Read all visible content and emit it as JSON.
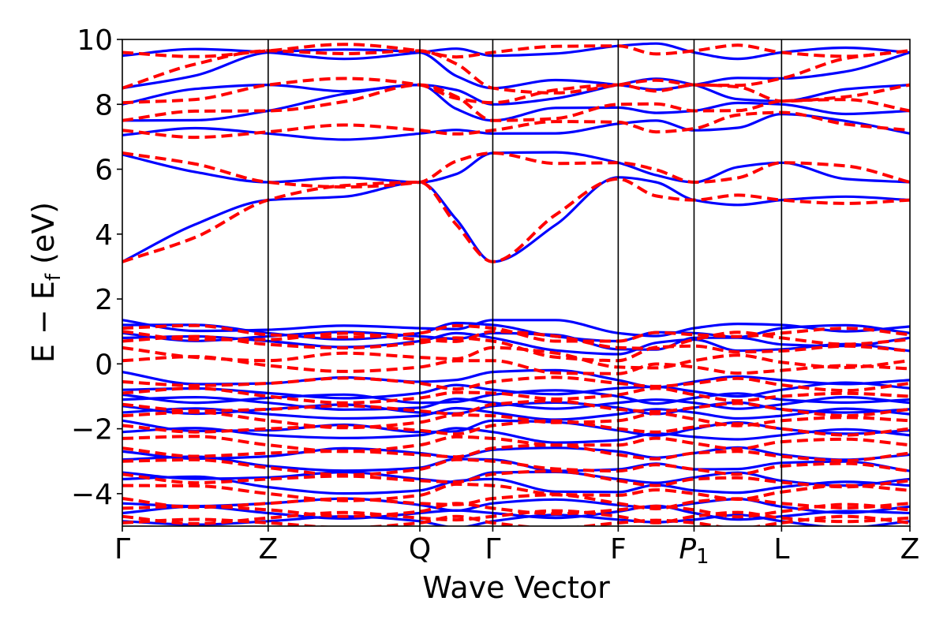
{
  "chart_data": {
    "type": "line",
    "xlabel": "Wave Vector",
    "ylabel_main": "E − E",
    "ylabel_sub": "f",
    "ylabel_unit": " (eV)",
    "ylim": [
      -5,
      10
    ],
    "yticks": [
      -4,
      -2,
      0,
      2,
      4,
      6,
      8,
      10
    ],
    "kpoints": [
      {
        "label": "Γ",
        "italic": false,
        "sub": ""
      },
      {
        "label": "Z",
        "italic": false,
        "sub": ""
      },
      {
        "label": "Q",
        "italic": false,
        "sub": ""
      },
      {
        "label": "Γ",
        "italic": false,
        "sub": ""
      },
      {
        "label": "F",
        "italic": false,
        "sub": ""
      },
      {
        "label": "P",
        "italic": true,
        "sub": "1"
      },
      {
        "label": "L",
        "italic": false,
        "sub": ""
      },
      {
        "label": "Z",
        "italic": false,
        "sub": ""
      }
    ],
    "kpos": [
      0,
      1,
      2.04,
      2.54,
      3.4,
      3.92,
      4.52,
      5.4
    ],
    "grid": "vertical lines at high-symmetry points",
    "series": [
      {
        "color": "#0000ff",
        "style": "solid",
        "bands": [
          [
            3.15,
            5.05,
            5.6,
            3.15,
            5.75,
            5.05,
            5.05,
            5.05
          ],
          [
            6.45,
            5.6,
            5.6,
            6.5,
            6.2,
            5.6,
            6.2,
            5.6
          ],
          [
            7.05,
            7.1,
            7.1,
            7.1,
            7.4,
            7.2,
            7.7,
            7.1
          ],
          [
            7.5,
            7.8,
            8.6,
            7.5,
            7.9,
            7.8,
            8.0,
            7.8
          ],
          [
            8.0,
            8.6,
            8.6,
            8.0,
            8.6,
            8.6,
            8.1,
            8.6
          ],
          [
            8.5,
            9.6,
            9.6,
            8.5,
            8.6,
            8.6,
            8.8,
            9.6
          ],
          [
            9.5,
            9.6,
            9.6,
            9.5,
            9.8,
            9.6,
            9.6,
            9.6
          ],
          [
            1.35,
            1.05,
            1.1,
            1.35,
            0.95,
            1.1,
            1.2,
            1.15
          ],
          [
            1.2,
            0.95,
            0.95,
            1.2,
            0.7,
            0.95,
            1.1,
            0.95
          ],
          [
            0.95,
            0.85,
            0.85,
            0.95,
            0.45,
            0.8,
            0.6,
            0.8
          ],
          [
            0.8,
            0.7,
            0.7,
            0.8,
            0.3,
            0.75,
            0.45,
            0.4
          ],
          [
            -0.25,
            -0.6,
            -0.55,
            -0.25,
            -0.5,
            -0.55,
            -0.5,
            -0.5
          ],
          [
            -0.8,
            -0.9,
            -0.9,
            -0.8,
            -0.75,
            -0.85,
            -0.8,
            -0.75
          ],
          [
            -0.95,
            -1.05,
            -1.2,
            -0.95,
            -1.0,
            -1.05,
            -1.1,
            -1.1
          ],
          [
            -1.1,
            -1.2,
            -1.35,
            -1.2,
            -1.2,
            -1.2,
            -1.25,
            -1.2
          ],
          [
            -1.3,
            -1.4,
            -1.5,
            -1.3,
            -1.35,
            -1.35,
            -1.4,
            -1.4
          ],
          [
            -1.5,
            -1.55,
            -1.6,
            -1.5,
            -1.55,
            -1.5,
            -1.6,
            -1.55
          ],
          [
            -1.75,
            -2.05,
            -2.1,
            -1.75,
            -2.05,
            -2.0,
            -2.0,
            -2.05
          ],
          [
            -2.1,
            -2.2,
            -2.2,
            -2.1,
            -2.35,
            -2.25,
            -2.2,
            -2.2
          ],
          [
            -2.7,
            -2.85,
            -2.75,
            -2.65,
            -2.7,
            -2.75,
            -2.8,
            -2.8
          ],
          [
            -2.95,
            -3.15,
            -3.2,
            -2.95,
            -3.25,
            -3.25,
            -3.05,
            -3.3
          ],
          [
            -3.35,
            -3.5,
            -3.55,
            -3.35,
            -3.55,
            -3.5,
            -3.6,
            -3.55
          ],
          [
            -3.55,
            -3.8,
            -3.9,
            -3.55,
            -3.95,
            -3.9,
            -3.8,
            -3.75
          ],
          [
            -4.3,
            -4.3,
            -4.35,
            -4.3,
            -4.35,
            -4.3,
            -4.4,
            -4.4
          ],
          [
            -4.6,
            -4.6,
            -4.6,
            -4.6,
            -4.55,
            -4.6,
            -4.7,
            -4.6
          ],
          [
            -4.85,
            -4.85,
            -4.85,
            -4.85,
            -4.8,
            -4.8,
            -4.85,
            -4.85
          ]
        ]
      },
      {
        "color": "#ff0000",
        "style": "dashed",
        "bands": [
          [
            3.15,
            5.05,
            5.6,
            3.15,
            5.7,
            5.05,
            5.05,
            5.05
          ],
          [
            6.5,
            5.6,
            5.6,
            6.5,
            6.2,
            5.6,
            6.2,
            5.6
          ],
          [
            7.2,
            7.15,
            7.2,
            7.2,
            7.45,
            7.25,
            7.75,
            7.2
          ],
          [
            7.5,
            7.8,
            8.6,
            7.5,
            8.0,
            7.8,
            8.1,
            7.8
          ],
          [
            8.05,
            8.6,
            8.6,
            8.05,
            8.6,
            8.6,
            8.1,
            8.6
          ],
          [
            8.5,
            9.65,
            9.65,
            8.5,
            8.6,
            8.6,
            8.8,
            9.65
          ],
          [
            9.6,
            9.65,
            9.65,
            9.6,
            9.8,
            9.65,
            9.6,
            9.65
          ],
          [
            1.1,
            0.9,
            0.95,
            1.1,
            0.7,
            0.9,
            0.95,
            0.9
          ],
          [
            1.0,
            0.75,
            0.75,
            1.0,
            0.5,
            0.75,
            0.8,
            0.75
          ],
          [
            0.7,
            0.6,
            0.65,
            0.7,
            0.1,
            0.55,
            0.4,
            0.4
          ],
          [
            0.5,
            0.1,
            0.2,
            0.5,
            -0.1,
            0.1,
            0.05,
            0.1
          ],
          [
            0.1,
            -0.05,
            -0.1,
            0.1,
            -0.3,
            -0.1,
            -0.2,
            -0.15
          ],
          [
            -0.55,
            -0.6,
            -0.6,
            -0.55,
            -0.6,
            -0.6,
            -0.65,
            -0.6
          ],
          [
            -0.9,
            -1.0,
            -1.05,
            -0.9,
            -0.95,
            -0.95,
            -1.0,
            -1.0
          ],
          [
            -1.25,
            -1.4,
            -1.45,
            -1.25,
            -1.4,
            -1.35,
            -1.4,
            -1.4
          ],
          [
            -1.6,
            -1.75,
            -1.8,
            -1.6,
            -1.75,
            -1.7,
            -1.75,
            -1.75
          ],
          [
            -1.9,
            -2.0,
            -2.05,
            -1.9,
            -2.0,
            -1.95,
            -2.0,
            -2.0
          ],
          [
            -2.3,
            -2.5,
            -2.5,
            -2.3,
            -2.5,
            -2.45,
            -2.4,
            -2.5
          ],
          [
            -2.6,
            -2.75,
            -2.8,
            -2.6,
            -2.8,
            -2.75,
            -2.85,
            -2.75
          ],
          [
            -3.0,
            -3.2,
            -3.25,
            -3.0,
            -3.3,
            -3.25,
            -3.15,
            -3.3
          ],
          [
            -3.4,
            -3.55,
            -3.6,
            -3.4,
            -3.6,
            -3.55,
            -3.65,
            -3.6
          ],
          [
            -3.75,
            -4.0,
            -4.05,
            -3.75,
            -4.05,
            -4.0,
            -3.95,
            -3.9
          ],
          [
            -4.15,
            -4.3,
            -4.3,
            -4.15,
            -4.3,
            -4.25,
            -4.3,
            -4.3
          ],
          [
            -4.45,
            -4.5,
            -4.55,
            -4.45,
            -4.5,
            -4.5,
            -4.55,
            -4.5
          ],
          [
            -4.7,
            -4.75,
            -4.75,
            -4.7,
            -4.7,
            -4.7,
            -4.75,
            -4.75
          ],
          [
            -4.9,
            -4.9,
            -4.9,
            -4.9,
            -4.9,
            -4.9,
            -4.9,
            -4.9
          ]
        ]
      }
    ]
  }
}
